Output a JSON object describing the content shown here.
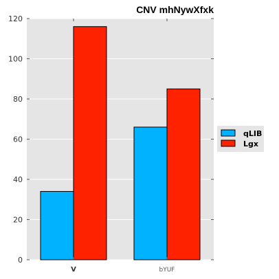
{
  "chart_data": {
    "type": "bar",
    "title": "CNV mhNywXfxk",
    "categories": [
      "V",
      "bYUF"
    ],
    "series": [
      {
        "name": "qLIB",
        "values": [
          34,
          66
        ],
        "color": "#00b2ff"
      },
      {
        "name": "Lgx",
        "values": [
          116,
          85
        ],
        "color": "#ff2200"
      }
    ],
    "ylim": [
      0,
      120
    ],
    "yticks": [
      0,
      20,
      40,
      60,
      80,
      100,
      120
    ],
    "xlabel": "",
    "ylabel": "",
    "grid": true,
    "background": "#e5e5e5",
    "legend_position": "right"
  }
}
